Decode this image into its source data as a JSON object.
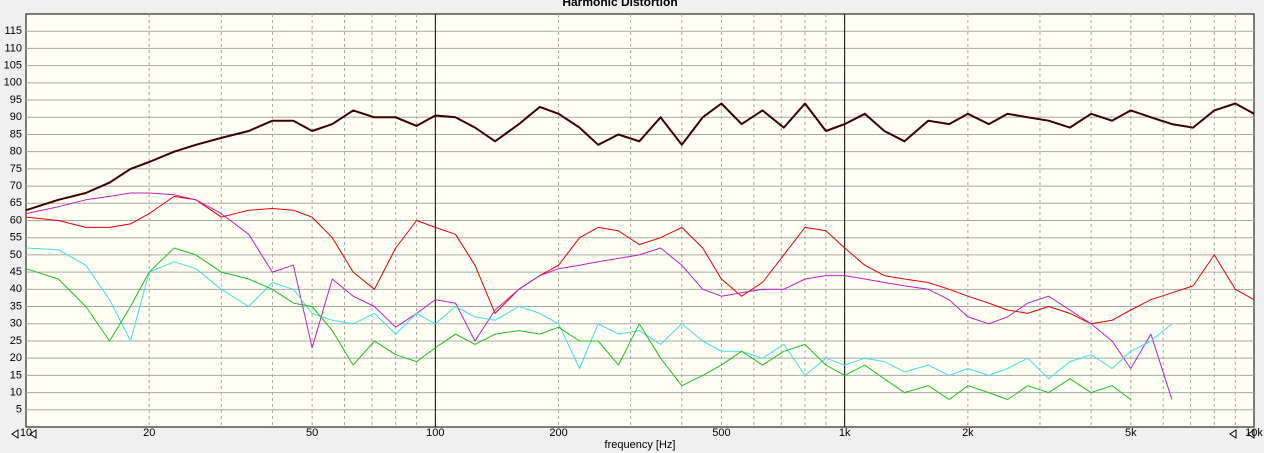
{
  "chart_data": {
    "type": "line",
    "title": "Harmonic Distortion",
    "x_label": "frequency [Hz]",
    "log_x": true,
    "xlim": [
      10,
      10000
    ],
    "xticks": [
      10,
      20,
      50,
      100,
      200,
      500,
      {
        "value": 1000,
        "label": "1k"
      },
      {
        "value": 2000,
        "label": "2k"
      },
      {
        "value": 5000,
        "label": "5k"
      },
      {
        "value": 10000,
        "label": "10k"
      }
    ],
    "xgrid": [
      20,
      30,
      40,
      50,
      60,
      70,
      80,
      90,
      100,
      200,
      300,
      400,
      500,
      600,
      700,
      800,
      900,
      1000,
      2000,
      3000,
      4000,
      5000,
      6000,
      7000,
      8000,
      9000
    ],
    "ylim": [
      0,
      120
    ],
    "yticks": [
      5,
      10,
      15,
      20,
      25,
      30,
      35,
      40,
      45,
      50,
      55,
      60,
      65,
      70,
      75,
      80,
      85,
      90,
      95,
      100,
      105,
      110,
      115
    ],
    "grid": true,
    "x": [
      10,
      12,
      14,
      16,
      18,
      20,
      23,
      26,
      30,
      35,
      40,
      45,
      50,
      56,
      63,
      71,
      80,
      90,
      100,
      112,
      125,
      140,
      160,
      180,
      200,
      225,
      250,
      280,
      315,
      355,
      400,
      450,
      500,
      560,
      630,
      710,
      800,
      900,
      1000,
      1120,
      1250,
      1400,
      1600,
      1800,
      2000,
      2250,
      2500,
      2800,
      3150,
      3550,
      4000,
      4500,
      5000,
      5600,
      6300,
      7100,
      8000,
      9000,
      10000
    ],
    "series": [
      {
        "color": "#e00000",
        "values": [
          61,
          60,
          58,
          58,
          59,
          62,
          67,
          66,
          61,
          63,
          63.5,
          63,
          61,
          55,
          45,
          40,
          52,
          60,
          58,
          56,
          47,
          33,
          40,
          44,
          47,
          55,
          58,
          57,
          53,
          55,
          58,
          52,
          43,
          38,
          42,
          50,
          58,
          57,
          52,
          47,
          44,
          43,
          42,
          40,
          38,
          36,
          34,
          33,
          35,
          33,
          30,
          31,
          34,
          37,
          39,
          41,
          50,
          40,
          37
        ]
      },
      {
        "color": "#c020c0",
        "values": [
          62,
          64,
          66,
          67,
          68,
          68,
          67.5,
          66,
          62,
          56,
          45,
          47,
          23,
          43,
          38,
          35,
          29,
          33,
          37,
          36,
          25,
          34,
          40,
          44,
          46,
          47,
          48,
          49,
          50,
          52,
          47,
          40,
          38,
          39,
          40,
          40,
          43,
          44,
          44,
          43,
          42,
          41,
          40,
          37,
          32,
          30,
          32,
          36,
          38,
          34,
          30,
          25,
          17,
          27,
          8,
          null,
          null,
          null,
          null
        ]
      },
      {
        "color": "#40e0e0",
        "values": [
          52,
          51.5,
          47,
          37,
          25,
          45,
          48,
          46,
          40,
          35,
          42,
          40,
          33,
          31,
          30,
          33,
          27,
          33,
          30,
          35,
          32,
          31,
          35,
          33,
          30,
          17,
          30,
          27,
          28,
          24,
          30,
          25,
          22,
          22,
          20,
          24,
          15,
          20,
          18,
          20,
          19,
          16,
          18,
          15,
          17,
          15,
          17,
          20,
          14,
          19,
          21,
          17,
          22,
          25,
          30,
          null,
          null,
          null,
          null
        ]
      },
      {
        "color": "#20c020",
        "values": [
          46,
          43,
          35,
          25,
          35,
          45,
          52,
          50,
          45,
          43,
          40,
          36,
          35,
          28,
          18,
          25,
          21,
          19,
          23,
          27,
          24,
          27,
          28,
          27,
          29,
          25,
          25,
          18,
          30,
          20,
          12,
          15,
          18,
          22,
          18,
          22,
          24,
          18,
          15,
          18,
          14,
          10,
          12,
          8,
          12,
          10,
          8,
          12,
          10,
          14,
          10,
          12,
          8,
          null,
          null,
          null,
          null,
          null,
          null
        ]
      },
      {
        "color": "#3a0000",
        "values": [
          63,
          66,
          68,
          71,
          75,
          77,
          80,
          82,
          84,
          86,
          89,
          89,
          86,
          88,
          92,
          90,
          90,
          87.5,
          90.5,
          90,
          87,
          83,
          88,
          93,
          91,
          87,
          82,
          85,
          83,
          90,
          82,
          90,
          94,
          88,
          92,
          87,
          94,
          86,
          88,
          91,
          86,
          83,
          89,
          88,
          91,
          88,
          91,
          90,
          89,
          87,
          91,
          89,
          92,
          90,
          88,
          87,
          92,
          94,
          91
        ]
      }
    ]
  }
}
